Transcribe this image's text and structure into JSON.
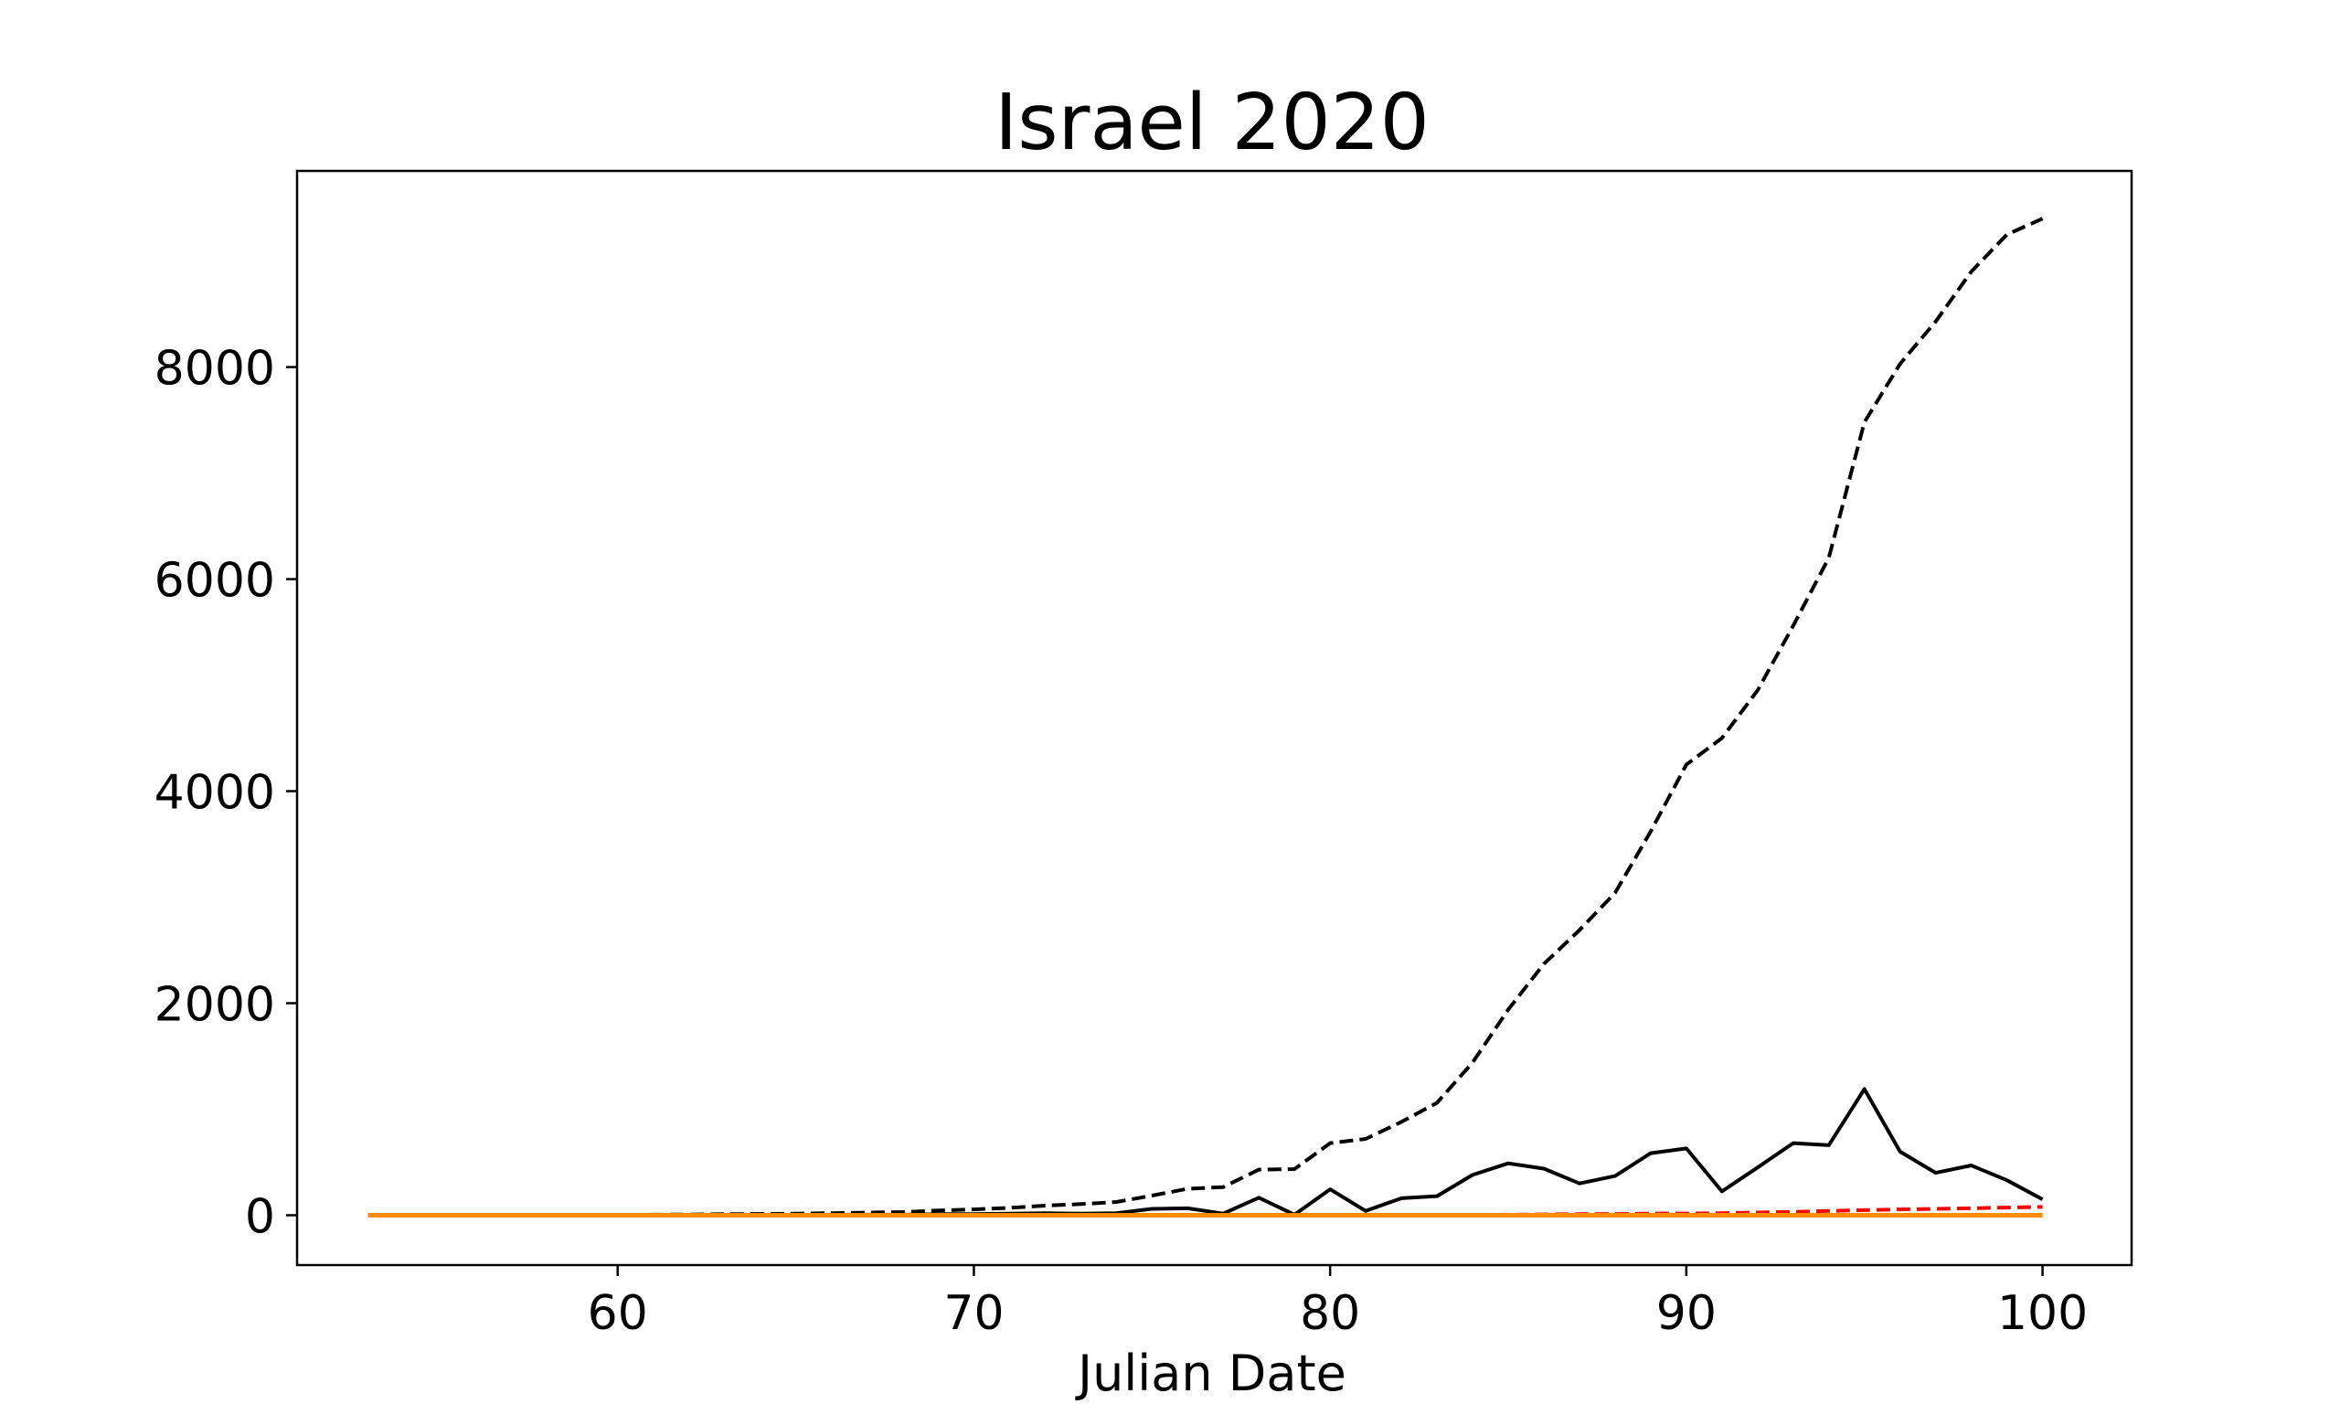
{
  "chart_data": {
    "type": "line",
    "title": "Israel 2020",
    "xlabel": "Julian Date",
    "ylabel": "",
    "xlim": [
      51,
      102.5
    ],
    "ylim": [
      -470,
      9850
    ],
    "xticks": [
      60,
      70,
      80,
      90,
      100
    ],
    "yticks": [
      0,
      2000,
      4000,
      6000,
      8000
    ],
    "grid": false,
    "x": [
      53,
      54,
      55,
      56,
      57,
      58,
      59,
      60,
      61,
      62,
      63,
      64,
      65,
      66,
      67,
      68,
      69,
      70,
      71,
      72,
      73,
      74,
      75,
      76,
      77,
      78,
      79,
      80,
      81,
      82,
      83,
      84,
      85,
      86,
      87,
      88,
      89,
      90,
      91,
      92,
      93,
      94,
      95,
      96,
      97,
      98,
      99,
      100
    ],
    "series": [
      {
        "color": "#000000",
        "dash": "dashed",
        "values": [
          1,
          1,
          1,
          1,
          1,
          2,
          2,
          3,
          5,
          7,
          10,
          12,
          15,
          20,
          25,
          30,
          45,
          55,
          70,
          90,
          105,
          125,
          185,
          250,
          265,
          430,
          435,
          680,
          720,
          880,
          1060,
          1440,
          1940,
          2370,
          2690,
          3040,
          3620,
          4250,
          4500,
          4950,
          5560,
          6200,
          7480,
          8030,
          8430,
          8900,
          9250,
          9400
        ]
      },
      {
        "color": "#000000",
        "dash": "solid",
        "values": [
          0,
          0,
          0,
          0,
          0,
          0,
          0,
          0,
          1,
          2,
          3,
          2,
          3,
          5,
          5,
          5,
          10,
          10,
          15,
          20,
          15,
          20,
          60,
          65,
          15,
          165,
          5,
          245,
          40,
          160,
          180,
          380,
          490,
          440,
          300,
          370,
          585,
          630,
          225,
          450,
          680,
          660,
          1190,
          600,
          400,
          470,
          330,
          150
        ]
      },
      {
        "color": "#ff0000",
        "dash": "dashed",
        "values": [
          0,
          0,
          0,
          0,
          0,
          0,
          0,
          0,
          0,
          0,
          0,
          0,
          0,
          0,
          0,
          0,
          0,
          0,
          0,
          0,
          0,
          0,
          0,
          0,
          0,
          0,
          0,
          1,
          1,
          1,
          2,
          3,
          5,
          8,
          10,
          12,
          15,
          16,
          20,
          26,
          32,
          40,
          48,
          55,
          60,
          66,
          72,
          78
        ]
      },
      {
        "color": "#ff8c00",
        "dash": "solid",
        "values": [
          0,
          0,
          0,
          0,
          0,
          0,
          0,
          0,
          0,
          0,
          0,
          0,
          0,
          0,
          0,
          0,
          0,
          0,
          0,
          0,
          0,
          0,
          0,
          0,
          0,
          0,
          0,
          0,
          0,
          0,
          0,
          0,
          0,
          0,
          0,
          0,
          0,
          0,
          0,
          0,
          0,
          0,
          0,
          0,
          0,
          0,
          0,
          0
        ]
      }
    ]
  }
}
